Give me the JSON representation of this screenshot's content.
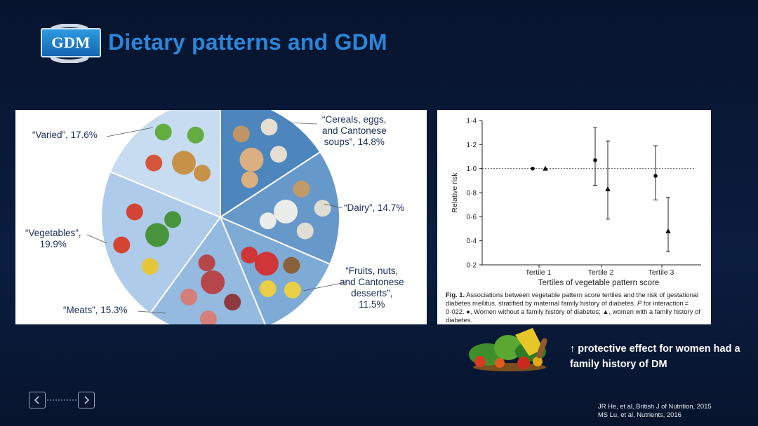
{
  "header": {
    "logo_text": "GDM",
    "title": "Dietary patterns and GDM"
  },
  "pie": {
    "slices": [
      {
        "label_lines": [
          "“Cereals, eggs,",
          "and Cantonese",
          "soups”, 14.8%"
        ],
        "percent": 14.8,
        "color": "#4d86bd"
      },
      {
        "label_lines": [
          "“Dairy”, 14.7%"
        ],
        "percent": 14.7,
        "color": "#6698c9"
      },
      {
        "label_lines": [
          "“Fruits, nuts,",
          "and Cantonese",
          "desserts”,",
          "11.5%"
        ],
        "percent": 11.5,
        "color": "#7eaad6"
      },
      {
        "label_lines": [
          "“Meats”, 15.3%"
        ],
        "percent": 15.3,
        "color": "#94bae0"
      },
      {
        "label_lines": [
          "“Vegetables”,",
          "19.9%"
        ],
        "percent": 19.9,
        "color": "#aecbe9"
      },
      {
        "label_lines": [
          "“Varied”, 17.6%"
        ],
        "percent": 17.6,
        "color": "#c8dcf1"
      }
    ]
  },
  "chart_data": {
    "type": "scatter",
    "ylabel": "Relative risk",
    "xlabel": "Tertiles of vegetable pattern score",
    "categories": [
      "Tertile 1",
      "Tertile 2",
      "Tertile 3"
    ],
    "ylim": [
      0.2,
      1.4
    ],
    "yticks": [
      "0·2",
      "0·4",
      "0·6",
      "0·8",
      "1·0",
      "1·2",
      "1·4"
    ],
    "reference_line": 1.0,
    "series": [
      {
        "marker": "circle",
        "points": [
          {
            "category": "Tertile 1",
            "value": 1.0
          },
          {
            "category": "Tertile 2",
            "value": 1.07,
            "low": 0.86,
            "high": 1.34
          },
          {
            "category": "Tertile 3",
            "value": 0.94,
            "low": 0.74,
            "high": 1.19
          }
        ]
      },
      {
        "marker": "triangle",
        "points": [
          {
            "category": "Tertile 1",
            "value": 1.0
          },
          {
            "category": "Tertile 2",
            "value": 0.83,
            "low": 0.58,
            "high": 1.23
          },
          {
            "category": "Tertile 3",
            "value": 0.48,
            "low": 0.31,
            "high": 0.76
          }
        ]
      }
    ],
    "caption": {
      "fig": "Fig. 1.",
      "line1": " Associations between vegetable pattern score tertiles and the risk of gestational diabetes mellitus, stratified by maternal family history of diabetes.",
      "p": "P",
      "line2": " for interaction = 0·022. ●, Women without a family history of diabetes; ▲, women with a family history of diabetes."
    }
  },
  "note": {
    "text": "↑ protective effect for women had a family history of DM"
  },
  "references": [
    "JR He, et al, British J of Nutrition, 2015",
    "MS Lu, et al, Nutrients, 2016"
  ],
  "nav": {
    "prev_icon": "chevron-left-icon",
    "next_icon": "chevron-right-icon"
  }
}
